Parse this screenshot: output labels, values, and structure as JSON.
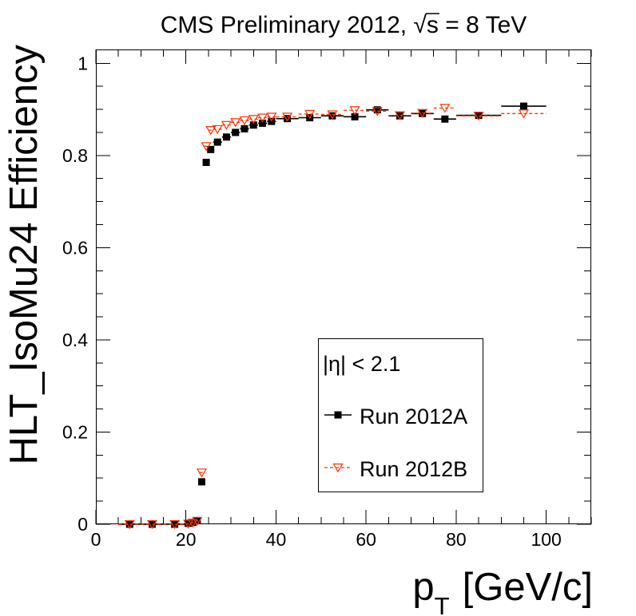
{
  "chart_data": {
    "type": "scatter",
    "title": "CMS Preliminary 2012, √s = 8 TeV",
    "xlabel": {
      "symbol": "p",
      "subscript": "T",
      "unit": "[GeV/c]"
    },
    "ylabel": "HLT_IsoMu24 Efficiency",
    "xlim": [
      0,
      110
    ],
    "ylim": [
      0,
      1.03
    ],
    "xticks": [
      0,
      20,
      40,
      60,
      80,
      100
    ],
    "xtick_labels": [
      "0",
      "20",
      "40",
      "60",
      "80",
      "100"
    ],
    "x_minor_step": 5,
    "yticks": [
      0,
      0.2,
      0.4,
      0.6,
      0.8,
      1
    ],
    "ytick_labels": [
      "0",
      "0.2",
      "0.4",
      "0.6",
      "0.8",
      "1"
    ],
    "y_minor_step": 0.05,
    "grid": false,
    "legend": {
      "header": "|η| < 2.1",
      "placement": "lower-right"
    },
    "series": [
      {
        "name": "Run 2012A",
        "color": "#000000",
        "marker": "filled-square",
        "line_style": "solid",
        "x": [
          7.5,
          12.5,
          17.5,
          20.5,
          21.5,
          22.5,
          23.5,
          24.5,
          25.5,
          27,
          29,
          31,
          33,
          35,
          37,
          39,
          42.5,
          47.5,
          52.5,
          57.5,
          62.5,
          67.5,
          72.5,
          77.5,
          85,
          95
        ],
        "xerr": [
          2.5,
          2.5,
          2.5,
          0.5,
          0.5,
          0.5,
          0.5,
          0.5,
          0.5,
          1,
          1,
          1,
          1,
          1,
          1,
          1,
          2.5,
          2.5,
          2.5,
          2.5,
          2.5,
          2.5,
          2.5,
          2.5,
          5,
          5
        ],
        "y": [
          0,
          0,
          0,
          0.002,
          0.004,
          0.008,
          0.092,
          0.785,
          0.813,
          0.829,
          0.84,
          0.85,
          0.858,
          0.866,
          0.87,
          0.874,
          0.88,
          0.882,
          0.886,
          0.884,
          0.899,
          0.886,
          0.891,
          0.879,
          0.887,
          0.907
        ]
      },
      {
        "name": "Run 2012B",
        "color": "#ff3300",
        "marker": "open-triangle-down",
        "line_style": "dashed",
        "x": [
          7.5,
          12.5,
          17.5,
          20.5,
          21.5,
          22.5,
          23.5,
          24.5,
          25.5,
          27,
          29,
          31,
          33,
          35,
          37,
          39,
          42.5,
          47.5,
          52.5,
          57.5,
          62.5,
          67.5,
          72.5,
          77.5,
          85,
          95
        ],
        "xerr": [
          2.5,
          2.5,
          2.5,
          0.5,
          0.5,
          0.5,
          0.5,
          0.5,
          0.5,
          1,
          1,
          1,
          1,
          1,
          1,
          1,
          2.5,
          2.5,
          2.5,
          2.5,
          2.5,
          2.5,
          2.5,
          2.5,
          5,
          5
        ],
        "y": [
          0,
          0,
          0,
          0.001,
          0.003,
          0.007,
          0.112,
          0.82,
          0.855,
          0.857,
          0.866,
          0.872,
          0.876,
          0.879,
          0.882,
          0.884,
          0.884,
          0.89,
          0.889,
          0.898,
          0.896,
          0.887,
          0.892,
          0.903,
          0.886,
          0.891
        ]
      }
    ]
  }
}
